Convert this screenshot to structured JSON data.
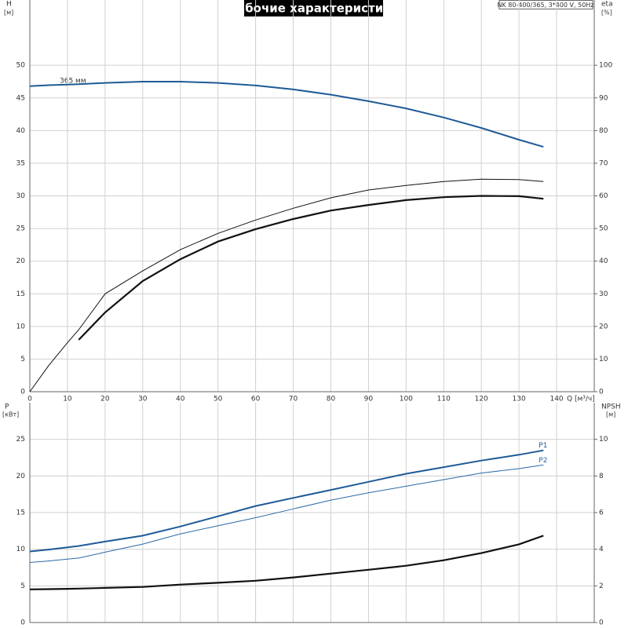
{
  "title": "Рабочие характеристики",
  "model": "NK 80-400/365, 3*400 V, 50Hz",
  "chart_data": [
    {
      "type": "line",
      "y_label": "H",
      "y_unit": "[м]",
      "y2_label": "eta",
      "y2_unit": "[%]",
      "x_label": "Q [м³/ч]",
      "annotation": "365 мм",
      "x": [
        0,
        5,
        10,
        13,
        20,
        30,
        40,
        50,
        60,
        70,
        80,
        90,
        100,
        110,
        120,
        130,
        136.5
      ],
      "xlim": [
        0,
        150
      ],
      "xticks": [
        0,
        10,
        20,
        30,
        40,
        50,
        60,
        70,
        80,
        90,
        100,
        110,
        120,
        130,
        140
      ],
      "ylim": [
        0,
        60
      ],
      "yticks": [
        0,
        5,
        10,
        15,
        20,
        25,
        30,
        35,
        40,
        45,
        50
      ],
      "y2lim": [
        0,
        120
      ],
      "y2ticks": [
        0,
        10,
        20,
        30,
        40,
        50,
        60,
        70,
        80,
        90,
        100
      ],
      "grid": true,
      "series": [
        {
          "color": "#1f5a96",
          "width": 2,
          "values": [
            46.8,
            46.95,
            47.05,
            47.1,
            47.3,
            47.5,
            47.5,
            47.3,
            46.9,
            46.3,
            45.5,
            44.5,
            43.4,
            42.0,
            40.4,
            38.6,
            37.5
          ]
        },
        {
          "color": "#111111",
          "width": 1,
          "axis": "y2",
          "values": [
            0,
            8,
            15,
            19,
            30,
            37,
            43.5,
            48.5,
            52.6,
            56.2,
            59.4,
            61.8,
            63.2,
            64.4,
            65.1,
            65,
            64.4
          ]
        },
        {
          "color": "#111111",
          "width": 2.2,
          "axis": "y2",
          "values": [
            null,
            null,
            null,
            15.9,
            24.3,
            33.9,
            40.6,
            46,
            49.8,
            52.9,
            55.5,
            57.2,
            58.7,
            59.6,
            60,
            59.9,
            59.1
          ]
        }
      ]
    },
    {
      "type": "line",
      "y_label": "P",
      "y_unit": "[кВт]",
      "y2_label": "NPSH",
      "y2_unit": "[м]",
      "x": [
        0,
        5,
        10,
        13,
        20,
        30,
        40,
        50,
        60,
        70,
        80,
        90,
        100,
        110,
        120,
        130,
        136.5
      ],
      "xlim": [
        0,
        150
      ],
      "ylim": [
        0,
        30
      ],
      "yticks": [
        0,
        5,
        10,
        15,
        20,
        25
      ],
      "y2lim": [
        0,
        12
      ],
      "y2ticks": [
        0,
        2,
        4,
        6,
        8,
        10
      ],
      "grid": true,
      "series": [
        {
          "name": "P1",
          "color": "#1f5a96",
          "width": 2,
          "values": [
            9.7,
            9.95,
            10.25,
            10.45,
            11.05,
            11.85,
            13.1,
            14.5,
            15.9,
            17.0,
            18.1,
            19.2,
            20.3,
            21.2,
            22.1,
            22.9,
            23.5
          ]
        },
        {
          "name": "P2",
          "color": "#2b6aa8",
          "width": 1,
          "values": [
            8.2,
            8.4,
            8.65,
            8.8,
            9.6,
            10.7,
            12.1,
            13.2,
            14.3,
            15.5,
            16.7,
            17.7,
            18.6,
            19.5,
            20.4,
            21.0,
            21.5
          ]
        },
        {
          "color": "#111111",
          "width": 2.2,
          "axis": "y2",
          "values": [
            1.81,
            1.82,
            1.84,
            1.85,
            1.89,
            1.94,
            2.07,
            2.17,
            2.28,
            2.46,
            2.67,
            2.88,
            3.1,
            3.4,
            3.79,
            4.27,
            4.74
          ]
        }
      ]
    }
  ]
}
